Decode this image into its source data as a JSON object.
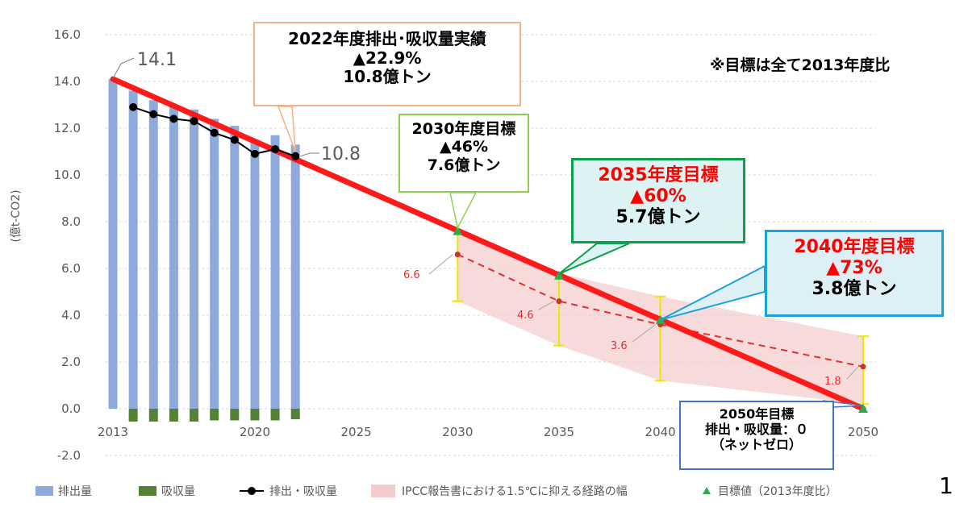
{
  "chart_data": {
    "type": "bar",
    "ylabel": "(億t-CO2)",
    "ylim": [
      -2.0,
      16.0
    ],
    "y_ticks": [
      "16.0",
      "14.0",
      "12.0",
      "10.0",
      "8.0",
      "6.0",
      "4.0",
      "2.0",
      "0.0",
      "-2.0"
    ],
    "x_ticks": [
      "2013",
      "2020",
      "2025",
      "2030",
      "2035",
      "2040",
      "2050"
    ],
    "x_tick_years": [
      2013,
      2020,
      2025,
      2030,
      2035,
      2040,
      2050
    ],
    "x_range": [
      2013,
      2050
    ],
    "grid": "horizontal-dotted",
    "series": [
      {
        "name": "排出量",
        "kind": "bar",
        "x": [
          2013,
          2014,
          2015,
          2016,
          2017,
          2018,
          2019,
          2020,
          2021,
          2022
        ],
        "y": [
          14.1,
          13.6,
          13.2,
          13.0,
          12.8,
          12.4,
          12.1,
          11.5,
          11.7,
          11.3
        ]
      },
      {
        "name": "吸収量",
        "kind": "bar",
        "x": [
          2014,
          2015,
          2016,
          2017,
          2018,
          2019,
          2020,
          2021,
          2022
        ],
        "y": [
          -0.55,
          -0.55,
          -0.55,
          -0.55,
          -0.5,
          -0.5,
          -0.5,
          -0.5,
          -0.45
        ]
      },
      {
        "name": "排出・吸収量",
        "kind": "line-marker",
        "x": [
          2014,
          2015,
          2016,
          2017,
          2018,
          2019,
          2020,
          2021,
          2022
        ],
        "y": [
          12.9,
          12.6,
          12.4,
          12.3,
          11.8,
          11.5,
          10.9,
          11.1,
          10.8
        ]
      },
      {
        "name": "IPCC報告書における1.5℃に抑える経路の幅",
        "kind": "band",
        "x": [
          2030,
          2035,
          2040,
          2050
        ],
        "low": [
          4.6,
          2.7,
          1.2,
          0.2
        ],
        "high": [
          7.6,
          5.8,
          4.8,
          3.1
        ],
        "median": [
          6.6,
          4.6,
          3.6,
          1.8
        ]
      },
      {
        "name": "目標値（2013年度比）",
        "kind": "triangle-marker",
        "x": [
          2030,
          2035,
          2040,
          2050
        ],
        "y": [
          7.6,
          5.7,
          3.8,
          0.0
        ]
      }
    ],
    "target_line": {
      "x": [
        2013,
        2050
      ],
      "y": [
        14.1,
        0.0
      ],
      "color": "#ff1a1a"
    },
    "data_labels": {
      "start": "14.1",
      "latest": "10.8",
      "ipcc_median": [
        "6.6",
        "4.6",
        "3.6",
        "1.8"
      ]
    },
    "colors": {
      "emissions_bar": "#8eaadb",
      "absorption_bar": "#548235",
      "net_line": "#000000",
      "target_line": "#ff1a1a",
      "band_fill": "#f4cccc",
      "band_median": "#e03030",
      "error_bar": "#f2e600",
      "target_marker": "#2eaa4a",
      "grid": "#d9d9d9"
    }
  },
  "callouts": {
    "actual_2022": {
      "lines": [
        "2022年度排出･吸収量実績",
        "▲22.9%",
        "10.8億トン"
      ],
      "border": "#f4b183"
    },
    "target_2030": {
      "lines": [
        "2030年度目標",
        "▲46%",
        "7.6億トン"
      ],
      "border": "#8fd14f"
    },
    "target_2035": {
      "lines": [
        "2035年度目標",
        "▲60%",
        "5.7億トン"
      ],
      "border": "#0e9f4e"
    },
    "target_2040": {
      "lines": [
        "2040年度目標",
        "▲73%",
        "3.8億トン"
      ],
      "border": "#1aa3d9"
    },
    "target_2050": {
      "lines": [
        "2050年目標",
        "排出・吸収量：０",
        "（ネットゼロ）"
      ],
      "border": "#4472c4"
    }
  },
  "note": "※目標は全て2013年度比",
  "page_number": "1"
}
